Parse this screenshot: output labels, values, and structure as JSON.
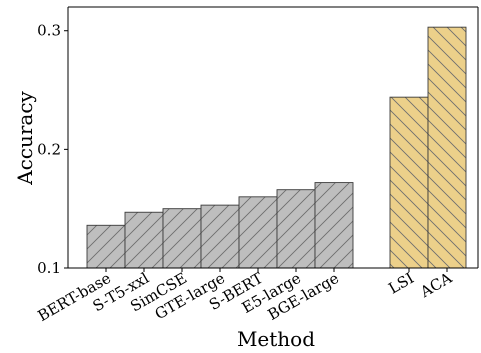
{
  "chart_data": {
    "type": "bar",
    "xlabel": "Method",
    "ylabel": "Accuracy",
    "ylim": [
      0.1,
      0.32
    ],
    "yticks": [
      0.1,
      0.2,
      0.3
    ],
    "ytick_labels": [
      "0.1",
      "0.2",
      "0.3"
    ],
    "grid": false,
    "legend": "none",
    "groups": [
      {
        "color": "#bebebe",
        "categories": [
          "BERT-base",
          "S-T5-xxl",
          "SimCSE",
          "GTE-large",
          "S-BERT",
          "E5-large",
          "BGE-large"
        ],
        "values": [
          0.136,
          0.147,
          0.15,
          0.153,
          0.16,
          0.166,
          0.172
        ]
      },
      {
        "color": "#ecd08a",
        "categories": [
          "LSI",
          "ACA"
        ],
        "values": [
          0.244,
          0.303
        ]
      }
    ]
  }
}
